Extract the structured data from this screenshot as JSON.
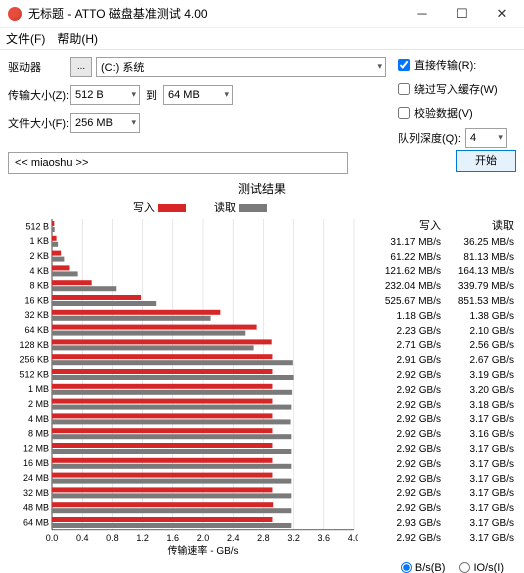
{
  "window": {
    "title": "无标题 - ATTO 磁盘基准测试 4.00"
  },
  "menu": {
    "file": "文件(F)",
    "help": "帮助(H)"
  },
  "form": {
    "drive_label": "驱动器",
    "browse": "...",
    "drive_value": "(C:) 系统",
    "trans_label": "传输大小(Z):",
    "trans_from": "512 B",
    "trans_to_lbl": "到",
    "trans_to": "64 MB",
    "file_label": "文件大小(F):",
    "file_value": "256 MB"
  },
  "opts": {
    "direct": "直接传输(R):",
    "bypass": "绕过写入缓存(W)",
    "verify": "校验数据(V)",
    "qd_label": "队列深度(Q):",
    "qd_value": "4"
  },
  "desc": {
    "text": "<< miaoshu >>"
  },
  "start": "开始",
  "results": {
    "title": "测试结果",
    "write_lgd": "写入",
    "read_lgd": "读取",
    "hdr_write": "写入",
    "hdr_read": "读取",
    "xaxis": "传输速率 - GB/s",
    "xmax": 4.0,
    "xtick_step": 0.4,
    "bar_write_color": "#d62728",
    "bar_read_color": "#7a7a7a",
    "grid_color": "#d0d0d0",
    "rows": [
      {
        "label": "512 B",
        "w": 0.03117,
        "r": 0.03625,
        "w_txt": "31.17 MB/s",
        "r_txt": "36.25 MB/s"
      },
      {
        "label": "1 KB",
        "w": 0.06122,
        "r": 0.08113,
        "w_txt": "61.22 MB/s",
        "r_txt": "81.13 MB/s"
      },
      {
        "label": "2 KB",
        "w": 0.12162,
        "r": 0.16413,
        "w_txt": "121.62 MB/s",
        "r_txt": "164.13 MB/s"
      },
      {
        "label": "4 KB",
        "w": 0.23204,
        "r": 0.33979,
        "w_txt": "232.04 MB/s",
        "r_txt": "339.79 MB/s"
      },
      {
        "label": "8 KB",
        "w": 0.52567,
        "r": 0.85153,
        "w_txt": "525.67 MB/s",
        "r_txt": "851.53 MB/s"
      },
      {
        "label": "16 KB",
        "w": 1.18,
        "r": 1.38,
        "w_txt": "1.18 GB/s",
        "r_txt": "1.38 GB/s"
      },
      {
        "label": "32 KB",
        "w": 2.23,
        "r": 2.1,
        "w_txt": "2.23 GB/s",
        "r_txt": "2.10 GB/s"
      },
      {
        "label": "64 KB",
        "w": 2.71,
        "r": 2.56,
        "w_txt": "2.71 GB/s",
        "r_txt": "2.56 GB/s"
      },
      {
        "label": "128 KB",
        "w": 2.91,
        "r": 2.67,
        "w_txt": "2.91 GB/s",
        "r_txt": "2.67 GB/s"
      },
      {
        "label": "256 KB",
        "w": 2.92,
        "r": 3.19,
        "w_txt": "2.92 GB/s",
        "r_txt": "3.19 GB/s"
      },
      {
        "label": "512 KB",
        "w": 2.92,
        "r": 3.2,
        "w_txt": "2.92 GB/s",
        "r_txt": "3.20 GB/s"
      },
      {
        "label": "1 MB",
        "w": 2.92,
        "r": 3.18,
        "w_txt": "2.92 GB/s",
        "r_txt": "3.18 GB/s"
      },
      {
        "label": "2 MB",
        "w": 2.92,
        "r": 3.17,
        "w_txt": "2.92 GB/s",
        "r_txt": "3.17 GB/s"
      },
      {
        "label": "4 MB",
        "w": 2.92,
        "r": 3.16,
        "w_txt": "2.92 GB/s",
        "r_txt": "3.16 GB/s"
      },
      {
        "label": "8 MB",
        "w": 2.92,
        "r": 3.17,
        "w_txt": "2.92 GB/s",
        "r_txt": "3.17 GB/s"
      },
      {
        "label": "12 MB",
        "w": 2.92,
        "r": 3.17,
        "w_txt": "2.92 GB/s",
        "r_txt": "3.17 GB/s"
      },
      {
        "label": "16 MB",
        "w": 2.92,
        "r": 3.17,
        "w_txt": "2.92 GB/s",
        "r_txt": "3.17 GB/s"
      },
      {
        "label": "24 MB",
        "w": 2.92,
        "r": 3.17,
        "w_txt": "2.92 GB/s",
        "r_txt": "3.17 GB/s"
      },
      {
        "label": "32 MB",
        "w": 2.92,
        "r": 3.17,
        "w_txt": "2.92 GB/s",
        "r_txt": "3.17 GB/s"
      },
      {
        "label": "48 MB",
        "w": 2.93,
        "r": 3.17,
        "w_txt": "2.93 GB/s",
        "r_txt": "3.17 GB/s"
      },
      {
        "label": "64 MB",
        "w": 2.92,
        "r": 3.17,
        "w_txt": "2.92 GB/s",
        "r_txt": "3.17 GB/s"
      }
    ]
  },
  "footer": {
    "bs": "B/s(B)",
    "ios": "IO/s(I)"
  }
}
